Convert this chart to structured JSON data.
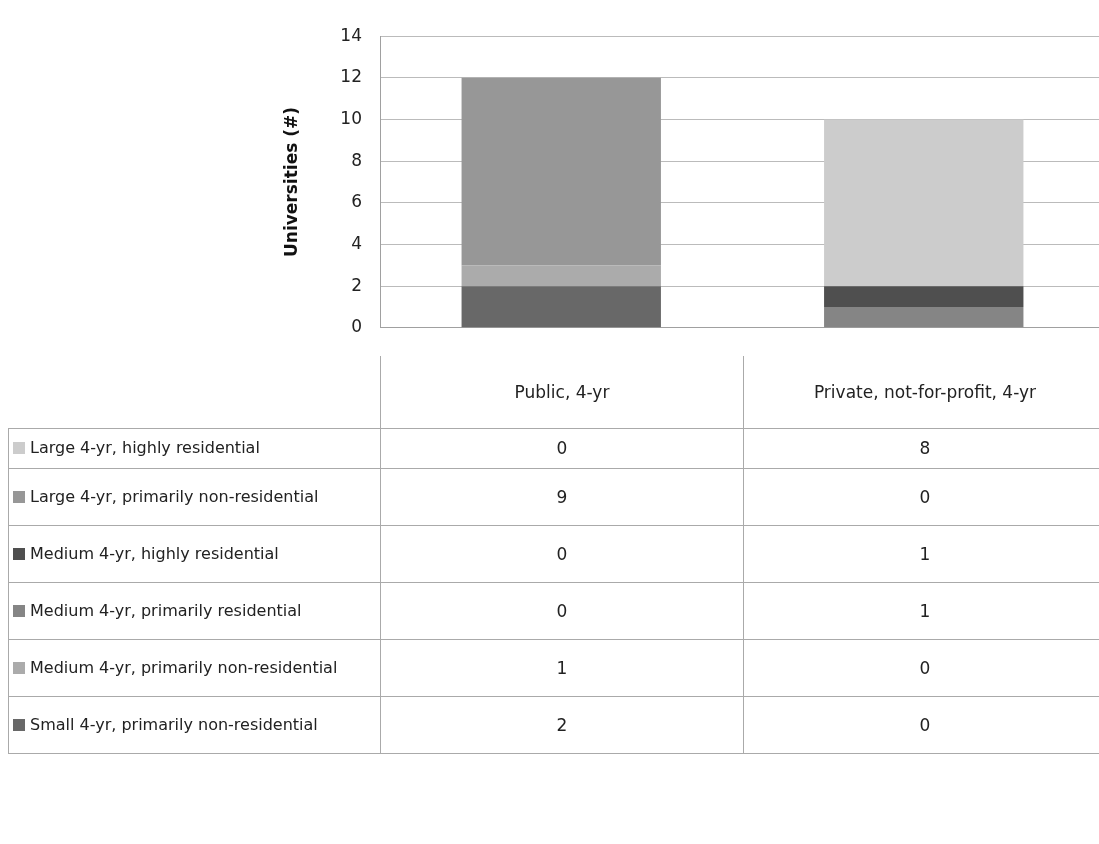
{
  "chart_data": {
    "type": "bar",
    "stacked": true,
    "ylabel": "Universities (#)",
    "categories": [
      "Public, 4-yr",
      "Private, not-for-profit, 4-yr"
    ],
    "series": [
      {
        "name": "Small 4-yr, primarily non-residential",
        "color": "#686868",
        "values": [
          2,
          0
        ],
        "value_labels": [
          "2",
          "0"
        ]
      },
      {
        "name": "Medium 4-yr, primarily non-residential",
        "color": "#ababab",
        "values": [
          1,
          0
        ],
        "value_labels": [
          "1",
          "0"
        ]
      },
      {
        "name": "Medium 4-yr, primarily residential",
        "color": "#858585",
        "values": [
          0,
          1
        ],
        "value_labels": [
          "0",
          "1"
        ]
      },
      {
        "name": "Medium 4-yr, highly residential",
        "color": "#4f4f4f",
        "values": [
          0,
          1
        ],
        "value_labels": [
          "0",
          "1"
        ]
      },
      {
        "name": "Large 4-yr, primarily non-residential",
        "color": "#979797",
        "values": [
          9,
          0
        ],
        "value_labels": [
          "9",
          "0"
        ]
      },
      {
        "name": "Large 4-yr, highly residential",
        "color": "#cccccc",
        "values": [
          0,
          8
        ],
        "value_labels": [
          "0",
          "8"
        ]
      }
    ],
    "ylim": [
      0,
      14
    ],
    "yticks": [
      0,
      2,
      4,
      6,
      8,
      10,
      12,
      14
    ],
    "grid": "y",
    "legend": "bottom"
  }
}
